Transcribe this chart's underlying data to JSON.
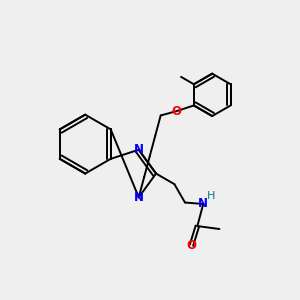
{
  "bg_color": "#efefef",
  "bond_color": "#000000",
  "N_color": "#0000ff",
  "O_color": "#ff0000",
  "NH_color": "#008080",
  "figsize": [
    3.0,
    3.0
  ],
  "dpi": 100,
  "xlim": [
    0,
    10
  ],
  "ylim": [
    0,
    10
  ]
}
